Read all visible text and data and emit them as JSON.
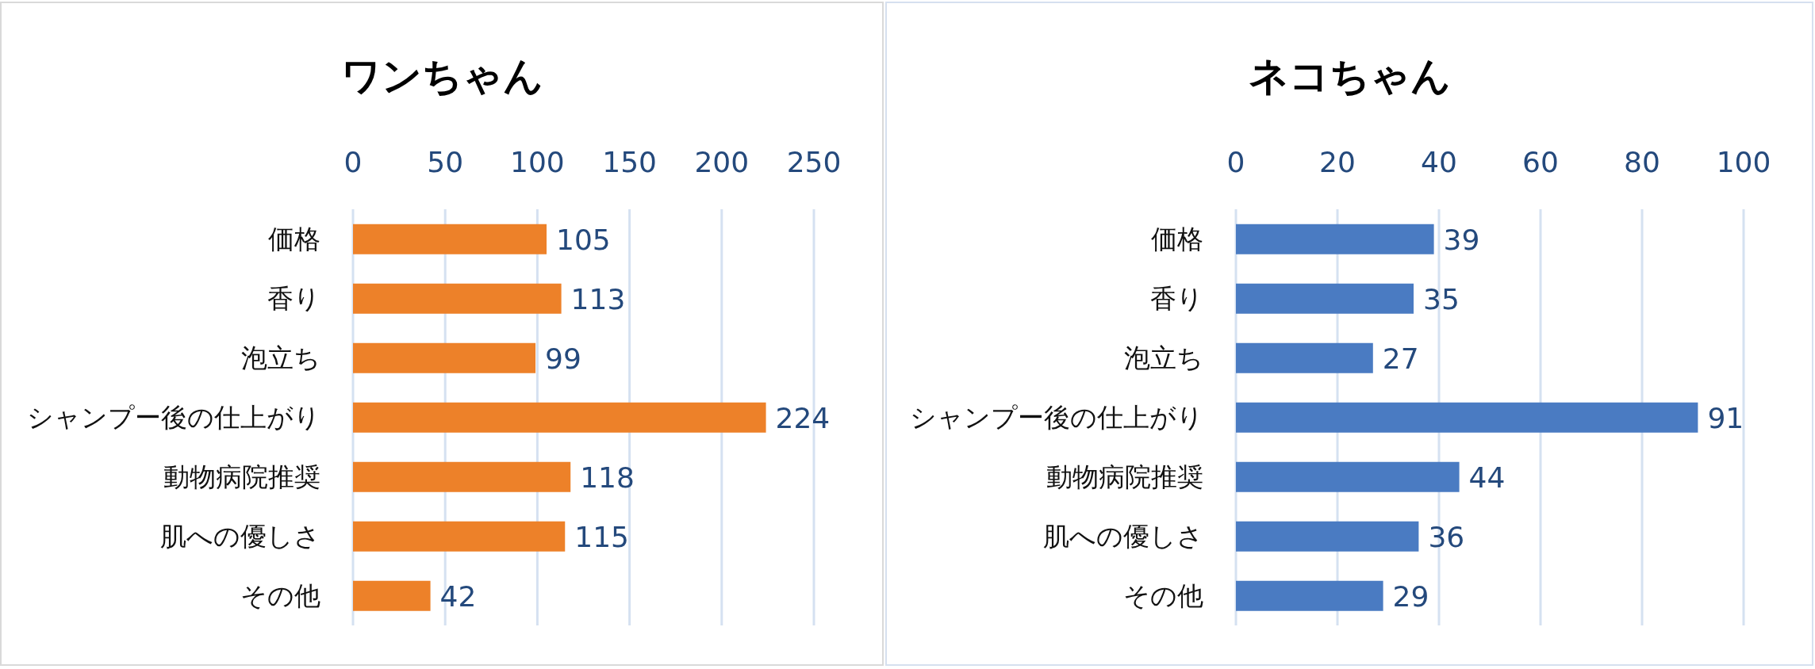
{
  "chart_data": [
    {
      "type": "bar",
      "orientation": "horizontal",
      "title": "ワンちゃん",
      "categories": [
        "価格",
        "香り",
        "泡立ち",
        "シャンプー後の仕上がり",
        "動物病院推奨",
        "肌への優しさ",
        "その他"
      ],
      "values": [
        105,
        113,
        99,
        224,
        118,
        115,
        42
      ],
      "color": "#ed8129",
      "xlim": [
        0,
        250
      ],
      "xticks": [
        0,
        50,
        100,
        150,
        200,
        250
      ],
      "grid": "x",
      "data_labels": true
    },
    {
      "type": "bar",
      "orientation": "horizontal",
      "title": "ネコちゃん",
      "categories": [
        "価格",
        "香り",
        "泡立ち",
        "シャンプー後の仕上がり",
        "動物病院推奨",
        "肌への優しさ",
        "その他"
      ],
      "values": [
        39,
        35,
        27,
        91,
        44,
        36,
        29
      ],
      "color": "#4a7bc2",
      "xlim": [
        0,
        100
      ],
      "xticks": [
        0,
        20,
        40,
        60,
        80,
        100
      ],
      "grid": "x",
      "data_labels": true
    }
  ]
}
